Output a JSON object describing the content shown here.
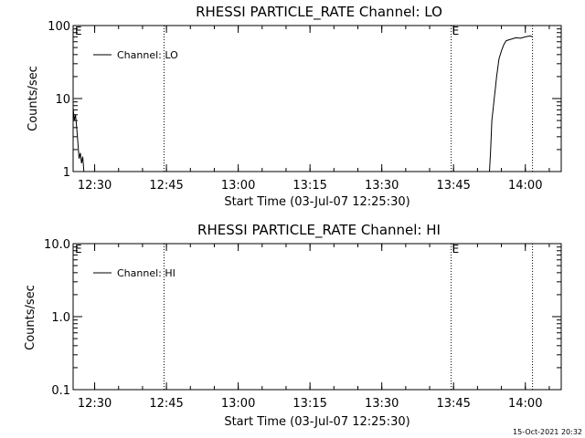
{
  "chart_data": [
    {
      "type": "line",
      "title": "RHESSI PARTICLE_RATE Channel: LO",
      "xlabel": "Start Time (03-Jul-07 12:25:30)",
      "ylabel": "Counts/sec",
      "yscale": "log",
      "ylim": [
        1,
        100
      ],
      "ytick_labels": [
        "1",
        "10",
        "100"
      ],
      "ytick_values": [
        1,
        10,
        100
      ],
      "xlim": [
        "12:25:30",
        "14:07:30"
      ],
      "xtick_labels": [
        "12:30",
        "12:45",
        "13:00",
        "13:15",
        "13:30",
        "13:45",
        "14:00"
      ],
      "xtick_values": [
        "12:30",
        "12:45",
        "13:00",
        "13:15",
        "13:30",
        "13:45",
        "14:00"
      ],
      "legend_location": "top-left",
      "series": [
        {
          "name": "Channel: LO",
          "x": [
            "12:25:30",
            "12:25:45",
            "12:26:00",
            "12:26:15",
            "12:26:30",
            "12:26:45",
            "12:27:00",
            "12:27:15",
            "12:27:30",
            "12:27:45",
            "13:52:30",
            "13:52:45",
            "13:53:00",
            "13:53:15",
            "13:53:30",
            "13:53:45",
            "13:54:00",
            "13:54:30",
            "13:55:00",
            "13:55:30",
            "13:56:00",
            "13:57:00",
            "13:58:00",
            "13:59:00",
            "14:00:00",
            "14:01:00",
            "14:01:30"
          ],
          "y": [
            7.5,
            5.0,
            6.0,
            4.0,
            2.5,
            1.5,
            1.8,
            1.3,
            1.6,
            1.0,
            1.0,
            2.0,
            5.0,
            7.0,
            10.0,
            14.0,
            20.0,
            35.0,
            45.0,
            55.0,
            62.0,
            65.0,
            68.0,
            67.0,
            70.0,
            72.0,
            70.0
          ]
        }
      ],
      "event_lines": [
        {
          "time": "12:44:30",
          "label": ""
        },
        {
          "time": "13:44:30",
          "label": "E"
        },
        {
          "time": "14:01:30",
          "label": ""
        }
      ],
      "corner_label": "E"
    },
    {
      "type": "line",
      "title": "RHESSI PARTICLE_RATE Channel: HI",
      "xlabel": "Start Time (03-Jul-07 12:25:30)",
      "ylabel": "Counts/sec",
      "yscale": "log",
      "ylim": [
        0.1,
        10
      ],
      "ytick_labels": [
        "0.1",
        "1.0",
        "10.0"
      ],
      "ytick_values": [
        0.1,
        1,
        10
      ],
      "xlim": [
        "12:25:30",
        "14:07:30"
      ],
      "xtick_labels": [
        "12:30",
        "12:45",
        "13:00",
        "13:15",
        "13:30",
        "13:45",
        "14:00"
      ],
      "xtick_values": [
        "12:30",
        "12:45",
        "13:00",
        "13:15",
        "13:30",
        "13:45",
        "14:00"
      ],
      "legend_location": "top-left",
      "series": [
        {
          "name": "Channel: HI",
          "x": [],
          "y": []
        }
      ],
      "event_lines": [
        {
          "time": "12:44:30",
          "label": ""
        },
        {
          "time": "13:44:30",
          "label": "E"
        },
        {
          "time": "14:01:30",
          "label": ""
        }
      ],
      "corner_label": "E"
    }
  ],
  "timestamp": "15-Oct-2021 20:32"
}
